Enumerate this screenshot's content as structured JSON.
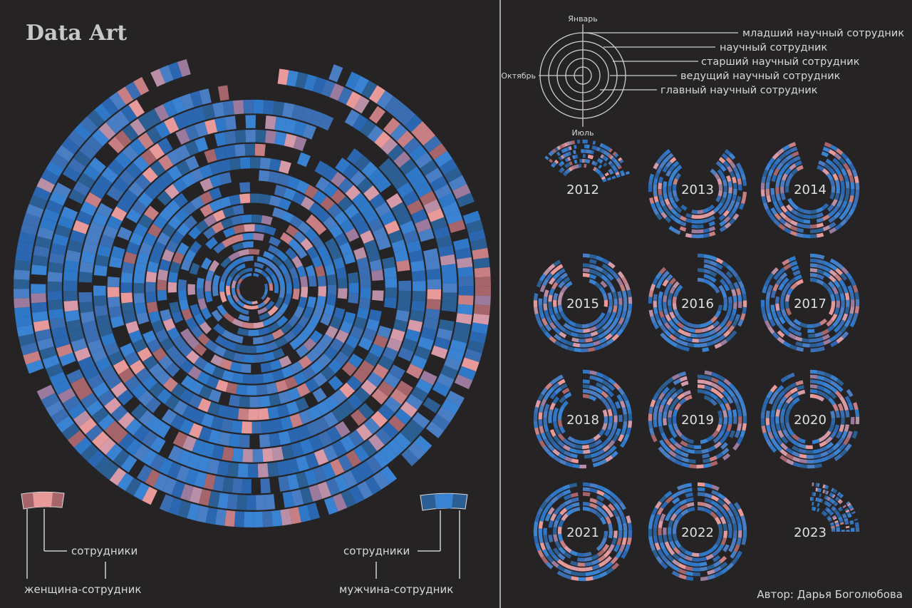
{
  "title": "Data Art",
  "colors": {
    "background": "#252323",
    "divider": "#d0d0d0",
    "male_palette": [
      "#2f78c8",
      "#3a82d2",
      "#2a67b0",
      "#4a7ec4",
      "#2b5f93",
      "#3b6db2"
    ],
    "female_palette": [
      "#e89a9a",
      "#d79aa8",
      "#b98fa8",
      "#c77f84",
      "#9b7a9e",
      "#a5656a"
    ],
    "text": "#d8d8d8"
  },
  "legend_left": {
    "employees": "сотрудники",
    "female_employee": "женщина-сотрудник"
  },
  "legend_right": {
    "employees": "сотрудники",
    "male_employee": "мужчина-сотрудник"
  },
  "key": {
    "months": {
      "top": "Январь",
      "left": "Октябрь",
      "bottom": "Июль"
    },
    "positions": [
      "младший научный сотрудник",
      "научный сотрудник",
      "старший научный сотрудник",
      "ведущий научный сотрудник",
      "главный научный сотрудник"
    ]
  },
  "years": [
    {
      "label": "2012",
      "fill": 0.35,
      "start": 0.85
    },
    {
      "label": "2013",
      "fill": 0.8,
      "start": 0.1
    },
    {
      "label": "2014",
      "fill": 0.9,
      "start": 0.05
    },
    {
      "label": "2015",
      "fill": 0.92,
      "start": 0.0
    },
    {
      "label": "2016",
      "fill": 0.88,
      "start": 0.0
    },
    {
      "label": "2017",
      "fill": 0.95,
      "start": 0.0
    },
    {
      "label": "2018",
      "fill": 0.93,
      "start": 0.0
    },
    {
      "label": "2019",
      "fill": 0.96,
      "start": 0.0
    },
    {
      "label": "2020",
      "fill": 0.97,
      "start": 0.0
    },
    {
      "label": "2021",
      "fill": 0.98,
      "start": 0.0
    },
    {
      "label": "2022",
      "fill": 0.98,
      "start": 0.0
    },
    {
      "label": "2023",
      "fill": 0.25,
      "start": 0.0
    }
  ],
  "author": "Автор: Дарья Боголюбова"
}
